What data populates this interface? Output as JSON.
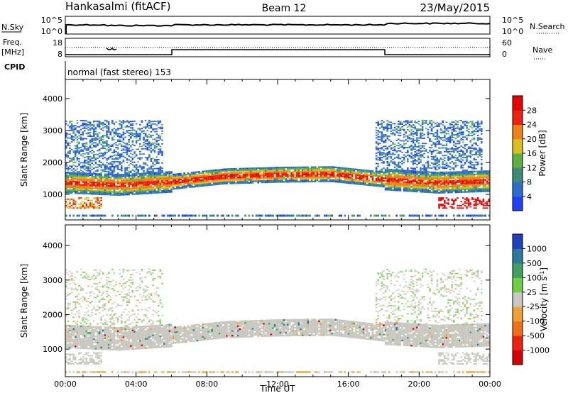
{
  "header": {
    "station": "Hankasalmi (fitACF)",
    "beam": "Beam 12",
    "date": "23/May/2015"
  },
  "top_panels": {
    "nsky_label": "N.Sky",
    "nsearch_label": "N.Search",
    "nave_label": "Nave",
    "freq_label_line1": "Freq.",
    "freq_label_line2": "[MHz]",
    "cpid_label": "CPID",
    "cpid_text": "normal (fast stereo) 153",
    "noise_ticks_left": [
      "10^5",
      "10^0"
    ],
    "noise_ticks_right": [
      "10^5",
      "10^0"
    ],
    "freq_ticks_left": [
      "18",
      "8"
    ],
    "freq_ticks_right": [
      "60",
      "0"
    ]
  },
  "chart_data": [
    {
      "type": "heatmap",
      "name": "Power",
      "ylabel": "Slant Range [km]",
      "ylim": [
        200,
        4600
      ],
      "yticks": [
        1000,
        2000,
        3000,
        4000
      ],
      "xlim": [
        0,
        24
      ],
      "colorbar": {
        "label": "Power [dB]",
        "ticks": [
          "4",
          "8",
          "12",
          "16",
          "20",
          "24",
          "28"
        ],
        "range": [
          0,
          32
        ],
        "colors": [
          "#2040ff",
          "#2a6fd0",
          "#3c8a7a",
          "#5cb040",
          "#d8c020",
          "#f08018",
          "#f02010",
          "#e80000"
        ]
      },
      "scatter_band": {
        "centre_km": [
          [
            0,
            1350
          ],
          [
            3,
            1280
          ],
          [
            6,
            1380
          ],
          [
            9,
            1550
          ],
          [
            12,
            1600
          ],
          [
            15,
            1620
          ],
          [
            18,
            1450
          ],
          [
            21,
            1350
          ],
          [
            24,
            1400
          ]
        ]
      }
    },
    {
      "type": "heatmap",
      "name": "Velocity",
      "ylabel": "Slant Range [km]",
      "xlabel": "Time UT",
      "ylim": [
        200,
        4600
      ],
      "yticks": [
        1000,
        2000,
        3000,
        4000
      ],
      "xlim": [
        0,
        24
      ],
      "xticks": [
        "00:00",
        "04:00",
        "08:00",
        "12:00",
        "16:00",
        "20:00",
        "00:00"
      ],
      "colorbar": {
        "label": "Velocity [m s^-1]",
        "ticks": [
          "1000",
          "500",
          "100",
          "25",
          "-25",
          "-100",
          "-500",
          "-1000"
        ],
        "colors": [
          "#2040c0",
          "#2a7aa0",
          "#3fa060",
          "#6cd040",
          "#c8c8c0",
          "#f0a030",
          "#f07018",
          "#f02010",
          "#d80000"
        ]
      }
    }
  ]
}
